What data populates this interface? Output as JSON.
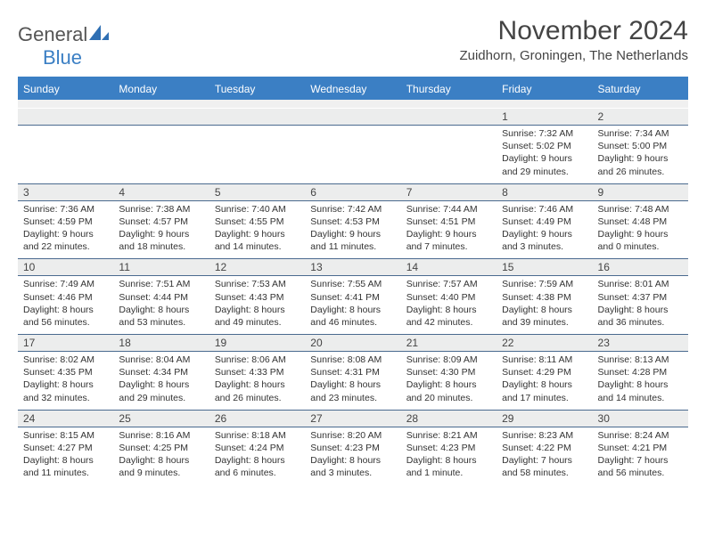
{
  "logo": {
    "textTop": "General",
    "textBottom": "Blue",
    "shapeColor": "#2f6fb3"
  },
  "title": "November 2024",
  "location": "Zuidhorn, Groningen, The Netherlands",
  "colors": {
    "headerBg": "#3b7fc4",
    "headerText": "#ffffff",
    "numRowBg": "#eceded",
    "numRowBorder": "#4a6a8f",
    "bodyText": "#333333",
    "titleText": "#444444"
  },
  "dayNames": [
    "Sunday",
    "Monday",
    "Tuesday",
    "Wednesday",
    "Thursday",
    "Friday",
    "Saturday"
  ],
  "weeks": [
    {
      "nums": [
        "",
        "",
        "",
        "",
        "",
        "1",
        "2"
      ],
      "cells": [
        null,
        null,
        null,
        null,
        null,
        {
          "sunrise": "Sunrise: 7:32 AM",
          "sunset": "Sunset: 5:02 PM",
          "day1": "Daylight: 9 hours",
          "day2": "and 29 minutes."
        },
        {
          "sunrise": "Sunrise: 7:34 AM",
          "sunset": "Sunset: 5:00 PM",
          "day1": "Daylight: 9 hours",
          "day2": "and 26 minutes."
        }
      ]
    },
    {
      "nums": [
        "3",
        "4",
        "5",
        "6",
        "7",
        "8",
        "9"
      ],
      "cells": [
        {
          "sunrise": "Sunrise: 7:36 AM",
          "sunset": "Sunset: 4:59 PM",
          "day1": "Daylight: 9 hours",
          "day2": "and 22 minutes."
        },
        {
          "sunrise": "Sunrise: 7:38 AM",
          "sunset": "Sunset: 4:57 PM",
          "day1": "Daylight: 9 hours",
          "day2": "and 18 minutes."
        },
        {
          "sunrise": "Sunrise: 7:40 AM",
          "sunset": "Sunset: 4:55 PM",
          "day1": "Daylight: 9 hours",
          "day2": "and 14 minutes."
        },
        {
          "sunrise": "Sunrise: 7:42 AM",
          "sunset": "Sunset: 4:53 PM",
          "day1": "Daylight: 9 hours",
          "day2": "and 11 minutes."
        },
        {
          "sunrise": "Sunrise: 7:44 AM",
          "sunset": "Sunset: 4:51 PM",
          "day1": "Daylight: 9 hours",
          "day2": "and 7 minutes."
        },
        {
          "sunrise": "Sunrise: 7:46 AM",
          "sunset": "Sunset: 4:49 PM",
          "day1": "Daylight: 9 hours",
          "day2": "and 3 minutes."
        },
        {
          "sunrise": "Sunrise: 7:48 AM",
          "sunset": "Sunset: 4:48 PM",
          "day1": "Daylight: 9 hours",
          "day2": "and 0 minutes."
        }
      ]
    },
    {
      "nums": [
        "10",
        "11",
        "12",
        "13",
        "14",
        "15",
        "16"
      ],
      "cells": [
        {
          "sunrise": "Sunrise: 7:49 AM",
          "sunset": "Sunset: 4:46 PM",
          "day1": "Daylight: 8 hours",
          "day2": "and 56 minutes."
        },
        {
          "sunrise": "Sunrise: 7:51 AM",
          "sunset": "Sunset: 4:44 PM",
          "day1": "Daylight: 8 hours",
          "day2": "and 53 minutes."
        },
        {
          "sunrise": "Sunrise: 7:53 AM",
          "sunset": "Sunset: 4:43 PM",
          "day1": "Daylight: 8 hours",
          "day2": "and 49 minutes."
        },
        {
          "sunrise": "Sunrise: 7:55 AM",
          "sunset": "Sunset: 4:41 PM",
          "day1": "Daylight: 8 hours",
          "day2": "and 46 minutes."
        },
        {
          "sunrise": "Sunrise: 7:57 AM",
          "sunset": "Sunset: 4:40 PM",
          "day1": "Daylight: 8 hours",
          "day2": "and 42 minutes."
        },
        {
          "sunrise": "Sunrise: 7:59 AM",
          "sunset": "Sunset: 4:38 PM",
          "day1": "Daylight: 8 hours",
          "day2": "and 39 minutes."
        },
        {
          "sunrise": "Sunrise: 8:01 AM",
          "sunset": "Sunset: 4:37 PM",
          "day1": "Daylight: 8 hours",
          "day2": "and 36 minutes."
        }
      ]
    },
    {
      "nums": [
        "17",
        "18",
        "19",
        "20",
        "21",
        "22",
        "23"
      ],
      "cells": [
        {
          "sunrise": "Sunrise: 8:02 AM",
          "sunset": "Sunset: 4:35 PM",
          "day1": "Daylight: 8 hours",
          "day2": "and 32 minutes."
        },
        {
          "sunrise": "Sunrise: 8:04 AM",
          "sunset": "Sunset: 4:34 PM",
          "day1": "Daylight: 8 hours",
          "day2": "and 29 minutes."
        },
        {
          "sunrise": "Sunrise: 8:06 AM",
          "sunset": "Sunset: 4:33 PM",
          "day1": "Daylight: 8 hours",
          "day2": "and 26 minutes."
        },
        {
          "sunrise": "Sunrise: 8:08 AM",
          "sunset": "Sunset: 4:31 PM",
          "day1": "Daylight: 8 hours",
          "day2": "and 23 minutes."
        },
        {
          "sunrise": "Sunrise: 8:09 AM",
          "sunset": "Sunset: 4:30 PM",
          "day1": "Daylight: 8 hours",
          "day2": "and 20 minutes."
        },
        {
          "sunrise": "Sunrise: 8:11 AM",
          "sunset": "Sunset: 4:29 PM",
          "day1": "Daylight: 8 hours",
          "day2": "and 17 minutes."
        },
        {
          "sunrise": "Sunrise: 8:13 AM",
          "sunset": "Sunset: 4:28 PM",
          "day1": "Daylight: 8 hours",
          "day2": "and 14 minutes."
        }
      ]
    },
    {
      "nums": [
        "24",
        "25",
        "26",
        "27",
        "28",
        "29",
        "30"
      ],
      "cells": [
        {
          "sunrise": "Sunrise: 8:15 AM",
          "sunset": "Sunset: 4:27 PM",
          "day1": "Daylight: 8 hours",
          "day2": "and 11 minutes."
        },
        {
          "sunrise": "Sunrise: 8:16 AM",
          "sunset": "Sunset: 4:25 PM",
          "day1": "Daylight: 8 hours",
          "day2": "and 9 minutes."
        },
        {
          "sunrise": "Sunrise: 8:18 AM",
          "sunset": "Sunset: 4:24 PM",
          "day1": "Daylight: 8 hours",
          "day2": "and 6 minutes."
        },
        {
          "sunrise": "Sunrise: 8:20 AM",
          "sunset": "Sunset: 4:23 PM",
          "day1": "Daylight: 8 hours",
          "day2": "and 3 minutes."
        },
        {
          "sunrise": "Sunrise: 8:21 AM",
          "sunset": "Sunset: 4:23 PM",
          "day1": "Daylight: 8 hours",
          "day2": "and 1 minute."
        },
        {
          "sunrise": "Sunrise: 8:23 AM",
          "sunset": "Sunset: 4:22 PM",
          "day1": "Daylight: 7 hours",
          "day2": "and 58 minutes."
        },
        {
          "sunrise": "Sunrise: 8:24 AM",
          "sunset": "Sunset: 4:21 PM",
          "day1": "Daylight: 7 hours",
          "day2": "and 56 minutes."
        }
      ]
    }
  ]
}
